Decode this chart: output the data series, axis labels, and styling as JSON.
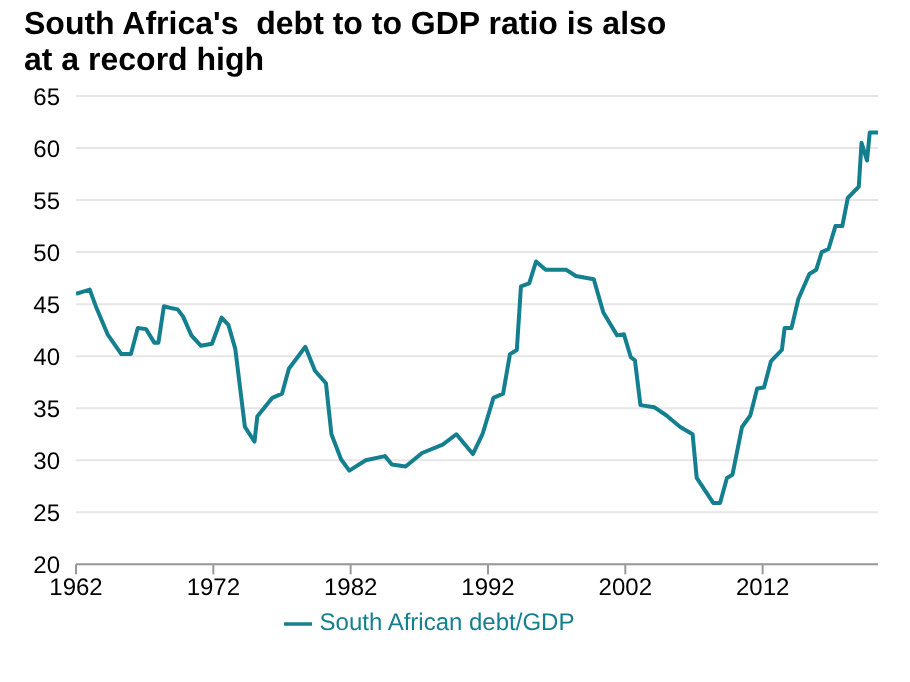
{
  "chart_data": {
    "type": "line",
    "title": "South Africa's  debt to to GDP ratio is also at a record high",
    "x": [
      1962,
      1963,
      1963.5,
      1964.3,
      1965.3,
      1966,
      1966.5,
      1967.1,
      1967.7,
      1968,
      1968.4,
      1969,
      1969.4,
      1969.8,
      1970.4,
      1971.1,
      1971.9,
      1972.6,
      1973.1,
      1973.6,
      1974.3,
      1975,
      1975.2,
      1976.3,
      1977,
      1977.5,
      1978.7,
      1979.4,
      1980.2,
      1980.6,
      1981.3,
      1981.9,
      1983.1,
      1984.5,
      1985,
      1986,
      1987.2,
      1988.7,
      1989.7,
      1990.9,
      1991.6,
      1992.4,
      1993.1,
      1993.6,
      1994.1,
      1994.4,
      1995,
      1995.5,
      1996.2,
      1997.7,
      1998.4,
      1999.7,
      2000.4,
      2001.4,
      2001.9,
      2002.4,
      2002.7,
      2003.1,
      2004.1,
      2005,
      2006,
      2006.9,
      2007.2,
      2008.4,
      2008.9,
      2009.4,
      2009.8,
      2010.5,
      2011.1,
      2011.6,
      2012.1,
      2012.6,
      2013.4,
      2013.6,
      2014.1,
      2014.6,
      2015.4,
      2015.9,
      2016.3,
      2016.8,
      2017.3,
      2017.8,
      2018.2,
      2019,
      2019.2,
      2019.6,
      2019.8,
      2020.4
    ],
    "series": [
      {
        "name": "South African debt/GDP",
        "color": "#137f8f",
        "values": [
          46,
          46.4,
          44.6,
          42.1,
          40.2,
          40.2,
          42.7,
          42.6,
          41.3,
          41.3,
          44.8,
          44.6,
          44.5,
          43.8,
          42,
          41,
          41.2,
          43.7,
          43,
          40.7,
          33.2,
          31.8,
          34.2,
          36,
          36.4,
          38.8,
          40.9,
          38.6,
          37.4,
          32.5,
          30.1,
          29,
          30,
          30.4,
          29.6,
          29.4,
          30.7,
          31.5,
          32.5,
          30.6,
          32.5,
          36,
          36.4,
          40.2,
          40.6,
          46.7,
          47,
          49.1,
          48.3,
          48.3,
          47.7,
          47.4,
          44.2,
          42,
          42.1,
          39.9,
          39.6,
          35.3,
          35.1,
          34.3,
          33.2,
          32.5,
          28.3,
          25.9,
          25.9,
          28.3,
          28.6,
          33.2,
          34.3,
          36.9,
          37,
          39.5,
          40.6,
          42.7,
          42.7,
          45.5,
          47.9,
          48.3,
          50,
          50.3,
          52.5,
          52.5,
          55.2,
          56.3,
          60.5,
          58.8,
          61.5,
          61.5
        ]
      }
    ],
    "xlim": [
      1962,
      2020.4
    ],
    "xticks": [
      1962,
      1972,
      1982,
      1992,
      2002,
      2012
    ],
    "ylim": [
      20,
      65
    ],
    "yticks": [
      20,
      25,
      30,
      35,
      40,
      45,
      50,
      55,
      60,
      65
    ],
    "grid": "y",
    "legend": "bottom",
    "marker": "none",
    "line_style": "solid"
  }
}
